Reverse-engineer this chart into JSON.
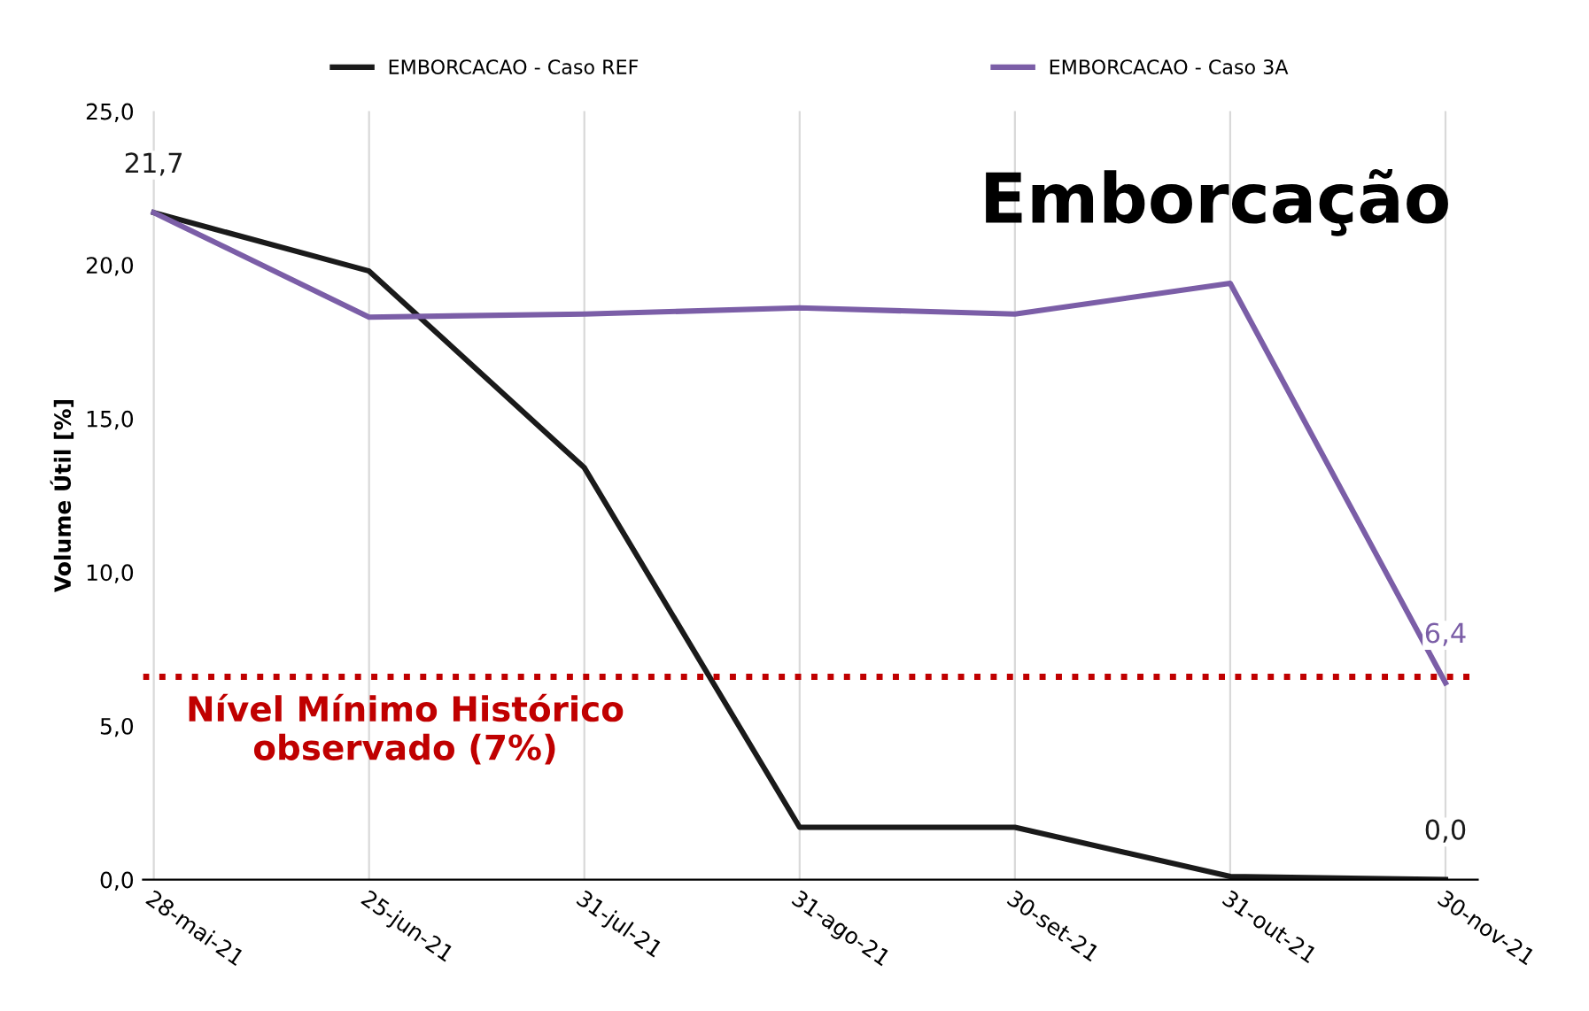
{
  "chart_data": {
    "type": "line",
    "title": "Emborcação",
    "ylabel": "Volume Útil [%]",
    "categories": [
      "28-mai-21",
      "25-jun-21",
      "31-jul-21",
      "31-ago-21",
      "30-set-21",
      "31-out-21",
      "30-nov-21"
    ],
    "series": [
      {
        "name": "EMBORCACAO - Caso REF",
        "color": "#1a1a1a",
        "values": [
          21.7,
          19.8,
          13.4,
          1.7,
          1.7,
          0.1,
          0.0
        ],
        "value_labels": [
          "21,7",
          null,
          null,
          null,
          null,
          null,
          "0,0"
        ]
      },
      {
        "name": "EMBORCACAO - Caso 3A",
        "color": "#7b5ea7",
        "values": [
          21.7,
          18.3,
          18.4,
          18.6,
          18.4,
          19.4,
          6.4
        ],
        "value_labels": [
          null,
          null,
          null,
          null,
          null,
          null,
          "6,4"
        ]
      }
    ],
    "ylim": [
      0,
      25
    ],
    "yticks": [
      {
        "value": 0,
        "label": "0,0"
      },
      {
        "value": 5,
        "label": "5,0"
      },
      {
        "value": 10,
        "label": "10,0"
      },
      {
        "value": 15,
        "label": "15,0"
      },
      {
        "value": 20,
        "label": "20,0"
      },
      {
        "value": 25,
        "label": "25,0"
      }
    ],
    "ref_lines": [
      {
        "axis": "y",
        "value": 6.6,
        "label": "Nível Mínimo Histórico\nobservado (7%)",
        "color": "#c00000",
        "line_style": "dotted"
      }
    ],
    "grid": "x",
    "legend": "top",
    "marker": "none",
    "line_style": "solid"
  }
}
